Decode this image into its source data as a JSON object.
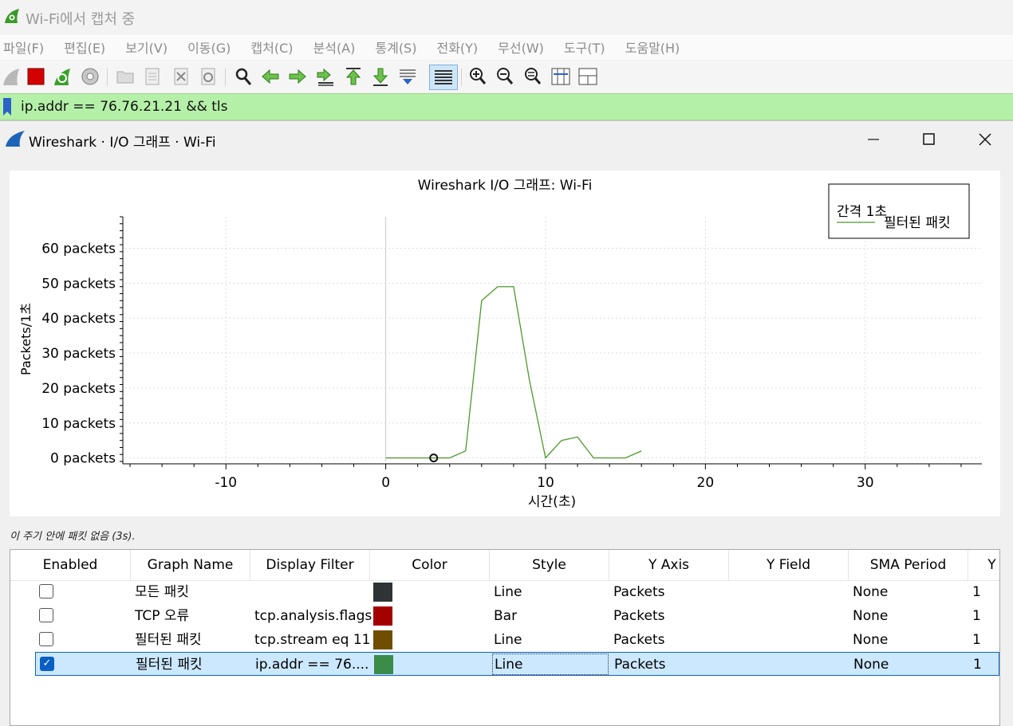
{
  "main_window": {
    "title": "Wi-Fi에서 캡처 중",
    "menu": [
      "파일(F)",
      "편집(E)",
      "보기(V)",
      "이동(G)",
      "캡처(C)",
      "분석(A)",
      "통계(S)",
      "전화(Y)",
      "무선(W)",
      "도구(T)",
      "도움말(H)"
    ],
    "toolbar_icons": [
      "shark-fin-start-icon",
      "stop-capture-icon",
      "restart-capture-icon",
      "capture-options-icon",
      "open-file-icon",
      "save-file-icon",
      "close-file-icon",
      "reload-file-icon",
      "find-packet-icon",
      "go-back-icon",
      "go-forward-icon",
      "go-to-packet-icon",
      "go-first-packet-icon",
      "go-last-packet-icon",
      "autoscroll-icon",
      "colorize-icon",
      "zoom-in-icon",
      "zoom-out-icon",
      "zoom-normal-icon",
      "resize-columns-icon",
      "layout-panes-icon"
    ],
    "filter_value": "ip.addr == 76.76.21.21 && tls"
  },
  "dialog": {
    "title": "Wireshark · I/O 그래프 · Wi-Fi",
    "status": "이 주기 안에 패킷 없음 (3s)."
  },
  "chart_data": {
    "type": "line",
    "title": "Wireshark I/O 그래프: Wi-Fi",
    "xlabel": "시간(초)",
    "ylabel": "Packets/1초",
    "xlim": [
      -16.3,
      37.3
    ],
    "ylim": [
      -1,
      69
    ],
    "x_ticks": [
      -10,
      0,
      10,
      20,
      30
    ],
    "y_ticks": [
      0,
      10,
      20,
      30,
      40,
      50,
      60
    ],
    "y_tick_suffix": " packets",
    "grid": true,
    "legend_position": "top-right",
    "legend_title": "간격 1초",
    "series": [
      {
        "name": "필터된 패킷",
        "color": "#4c9a2a",
        "x": [
          0,
          1,
          2,
          3,
          4,
          5,
          6,
          7,
          8,
          9,
          10,
          11,
          12,
          13,
          14,
          15,
          16
        ],
        "values": [
          0,
          0,
          0,
          0,
          0,
          2,
          45,
          49,
          49,
          22,
          0,
          5,
          6,
          0,
          0,
          0,
          2
        ]
      }
    ],
    "marker_point": {
      "x": 3,
      "y": 0
    }
  },
  "table": {
    "columns": [
      "Enabled",
      "Graph Name",
      "Display Filter",
      "Color",
      "Style",
      "Y Axis",
      "Y Field",
      "SMA Period",
      "Y"
    ],
    "rows": [
      {
        "enabled": false,
        "name": "모든 패킷",
        "filter": "",
        "color": "#2e3436",
        "style": "Line",
        "y_axis": "Packets",
        "y_field": "",
        "sma": "None",
        "y": "1"
      },
      {
        "enabled": false,
        "name": "TCP 오류",
        "filter": "tcp.analysis.flags",
        "color": "#a40000",
        "style": "Bar",
        "y_axis": "Packets",
        "y_field": "",
        "sma": "None",
        "y": "1"
      },
      {
        "enabled": false,
        "name": "필터된 패킷",
        "filter": "tcp.stream eq 11",
        "color": "#704e00",
        "style": "Line",
        "y_axis": "Packets",
        "y_field": "",
        "sma": "None",
        "y": "1"
      },
      {
        "enabled": true,
        "name": "필터된 패킷",
        "filter": "ip.addr == 76....",
        "color": "#3a8c48",
        "style": "Line",
        "y_axis": "Packets",
        "y_field": "",
        "sma": "None",
        "y": "1"
      }
    ]
  }
}
